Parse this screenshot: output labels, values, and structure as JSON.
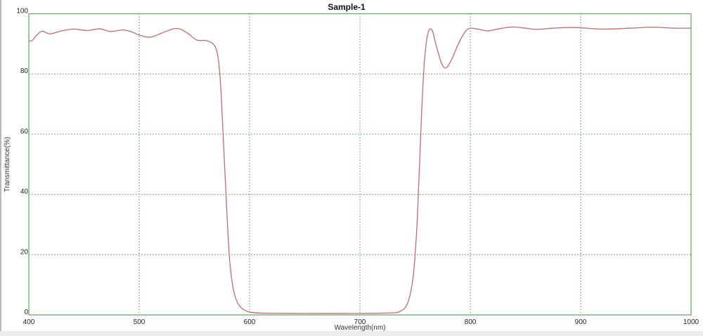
{
  "chart_data": {
    "type": "line",
    "title": "Sample-1",
    "xlabel": "Wavelength(nm)",
    "ylabel": "Transmittance(%)",
    "xlim": [
      400,
      1000
    ],
    "ylim": [
      0,
      100
    ],
    "xticks": [
      400,
      500,
      600,
      700,
      800,
      900,
      1000
    ],
    "yticks": [
      0,
      20,
      40,
      60,
      80,
      100
    ],
    "grid": true,
    "colors": {
      "line": "#c8696d",
      "axis": "#6aaa6a",
      "grid": "#4f9a4f"
    },
    "series": [
      {
        "x": [
          400,
          403,
          407,
          412,
          419,
          430,
          441,
          453,
          464,
          474,
          485,
          493,
          500,
          510,
          520,
          533,
          542,
          552,
          560,
          565,
          568,
          570,
          572,
          574,
          576,
          578,
          580,
          582,
          585,
          588,
          592,
          596,
          600,
          610,
          650,
          700,
          730,
          738,
          742,
          745,
          748,
          750,
          752,
          754,
          756,
          758,
          760,
          762,
          764,
          766,
          768,
          771,
          774,
          777,
          780,
          784,
          788,
          792,
          796,
          800,
          808,
          816,
          826,
          838,
          850,
          860,
          875,
          895,
          920,
          945,
          965,
          985,
          1000
        ],
        "y": [
          90.9,
          91.1,
          92.8,
          94.2,
          93.3,
          94.3,
          94.9,
          94.4,
          95.0,
          94.1,
          94.6,
          94.0,
          92.9,
          92.2,
          93.5,
          95.1,
          94.0,
          91.3,
          91.1,
          90.5,
          89.5,
          88,
          84,
          75,
          60,
          45,
          30,
          18,
          9,
          5,
          2.5,
          1.5,
          1.0,
          0.6,
          0.5,
          0.5,
          0.7,
          1.5,
          3,
          6,
          12,
          20,
          32,
          50,
          68,
          82,
          90,
          94,
          95,
          94,
          91,
          87,
          83.5,
          82,
          82.8,
          85.5,
          89,
          92,
          94.3,
          95.2,
          94.8,
          94.3,
          95.0,
          95.6,
          95.2,
          94.8,
          95.2,
          95.4,
          94.9,
          95.2,
          95.5,
          95.2,
          95.2
        ]
      }
    ]
  }
}
